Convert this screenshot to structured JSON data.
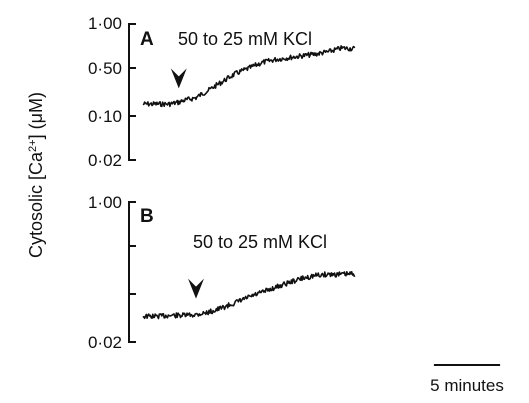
{
  "ylabel": "Cytosolic [Ca2+] (μM)",
  "ylabel_parts": {
    "pre": "Cytosolic [Ca",
    "sup": "2+",
    "post": "] (",
    "mu": "μ",
    "unit": "M)"
  },
  "scale_bar": {
    "label": "5 minutes",
    "minutes": 5
  },
  "chart_data": [
    {
      "type": "line",
      "panel": "A",
      "annotation": "50 to 25 mM KCl",
      "yscale": "log",
      "ylim": [
        0.02,
        1.0
      ],
      "yticks": [
        "1·00",
        "0·50",
        "0·10",
        "0·02"
      ],
      "marker_time_min": 2.7,
      "x_minutes": [
        0,
        1,
        2,
        2.7,
        3,
        4,
        5,
        6,
        7,
        8,
        9,
        10,
        11,
        12,
        13,
        14,
        15,
        16
      ],
      "y": [
        0.1,
        0.1,
        0.1,
        0.105,
        0.11,
        0.12,
        0.15,
        0.19,
        0.24,
        0.28,
        0.33,
        0.36,
        0.38,
        0.4,
        0.42,
        0.45,
        0.5,
        0.49
      ]
    },
    {
      "type": "line",
      "panel": "B",
      "annotation": "50 to 25 mM KCl",
      "yscale": "log",
      "ylim": [
        0.02,
        1.0
      ],
      "yticks": [
        "1·00",
        "0·02"
      ],
      "marker_time_min": 4.0,
      "x_minutes": [
        0,
        1,
        2,
        3,
        4,
        5,
        6,
        7,
        8,
        9,
        10,
        11,
        12,
        13,
        14,
        15,
        16
      ],
      "y": [
        0.041,
        0.041,
        0.042,
        0.042,
        0.043,
        0.046,
        0.052,
        0.06,
        0.07,
        0.08,
        0.092,
        0.105,
        0.118,
        0.128,
        0.133,
        0.132,
        0.135
      ]
    }
  ]
}
